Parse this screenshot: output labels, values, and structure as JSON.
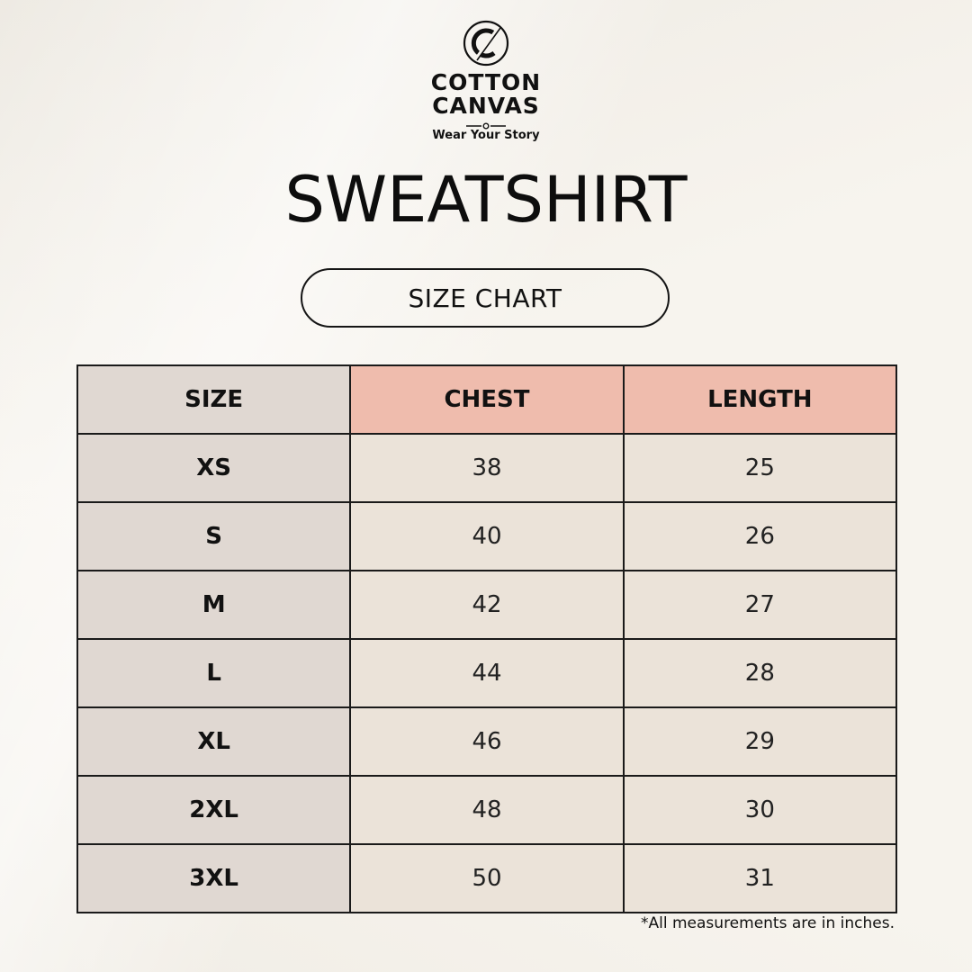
{
  "brand": {
    "name_line1": "COTTON",
    "name_line2": "CANVAS",
    "tagline": "Wear Your Story",
    "logo_icon": "cotton-canvas-logo-icon"
  },
  "title": "SWEATSHIRT",
  "subtitle": "SIZE CHART",
  "table": {
    "headers": [
      "SIZE",
      "CHEST",
      "LENGTH"
    ],
    "rows": [
      {
        "size": "XS",
        "chest": "38",
        "length": "25"
      },
      {
        "size": "S",
        "chest": "40",
        "length": "26"
      },
      {
        "size": "M",
        "chest": "42",
        "length": "27"
      },
      {
        "size": "L",
        "chest": "44",
        "length": "28"
      },
      {
        "size": "XL",
        "chest": "46",
        "length": "29"
      },
      {
        "size": "2XL",
        "chest": "48",
        "length": "30"
      },
      {
        "size": "3XL",
        "chest": "50",
        "length": "31"
      }
    ]
  },
  "note": "*All measurements are in inches.",
  "colors": {
    "background": "#f7f4ee",
    "size_column": "#e0d8d2",
    "accent_header": "#efbcad",
    "value_cell": "#ebe3d9",
    "ink": "#111111"
  }
}
